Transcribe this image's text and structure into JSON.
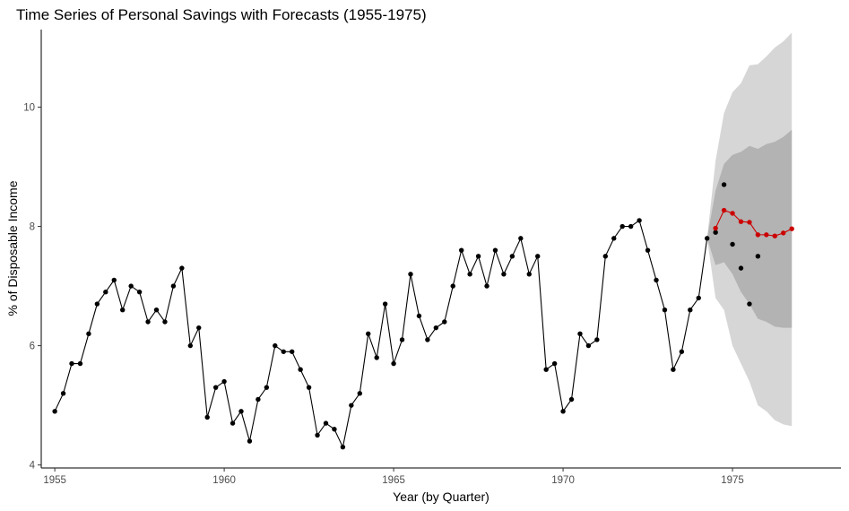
{
  "chart_data": {
    "type": "line",
    "title": "Time Series of Personal Savings with Forecasts (1955-1975)",
    "xlabel": "Year (by Quarter)",
    "ylabel": "% of Disposable Income",
    "xlim": [
      1954.6,
      1978.2
    ],
    "ylim": [
      3.95,
      11.3
    ],
    "x_ticks": [
      1955,
      1960,
      1965,
      1970,
      1975
    ],
    "y_ticks": [
      4,
      6,
      8,
      10
    ],
    "grid": false,
    "legend": "none",
    "colors": {
      "observed": "#000000",
      "forecast": "#cc0000",
      "band_80": "#b3b3b3",
      "band_95": "#d6d6d6"
    },
    "series": [
      {
        "role": "observed",
        "x": [
          1955.0,
          1955.25,
          1955.5,
          1955.75,
          1956.0,
          1956.25,
          1956.5,
          1956.75,
          1957.0,
          1957.25,
          1957.5,
          1957.75,
          1958.0,
          1958.25,
          1958.5,
          1958.75,
          1959.0,
          1959.25,
          1959.5,
          1959.75,
          1960.0,
          1960.25,
          1960.5,
          1960.75,
          1961.0,
          1961.25,
          1961.5,
          1961.75,
          1962.0,
          1962.25,
          1962.5,
          1962.75,
          1963.0,
          1963.25,
          1963.5,
          1963.75,
          1964.0,
          1964.25,
          1964.5,
          1964.75,
          1965.0,
          1965.25,
          1965.5,
          1965.75,
          1966.0,
          1966.25,
          1966.5,
          1966.75,
          1967.0,
          1967.25,
          1967.5,
          1967.75,
          1968.0,
          1968.25,
          1968.5,
          1968.75,
          1969.0,
          1969.25,
          1969.5,
          1969.75,
          1970.0,
          1970.25,
          1970.5,
          1970.75,
          1971.0,
          1971.25,
          1971.5,
          1971.75,
          1972.0,
          1972.25,
          1972.5,
          1972.75,
          1973.0,
          1973.25,
          1973.5,
          1973.75,
          1974.0,
          1974.25
        ],
        "values": [
          4.9,
          5.2,
          5.7,
          5.7,
          6.2,
          6.7,
          6.9,
          7.1,
          6.6,
          7.0,
          6.9,
          6.4,
          6.6,
          6.4,
          7.0,
          7.3,
          6.0,
          6.3,
          4.8,
          5.3,
          5.4,
          4.7,
          4.9,
          4.4,
          5.1,
          5.3,
          6.0,
          5.9,
          5.9,
          5.6,
          5.3,
          4.5,
          4.7,
          4.6,
          4.3,
          5.0,
          5.2,
          6.2,
          5.8,
          6.7,
          5.7,
          6.1,
          7.2,
          6.5,
          6.1,
          6.3,
          6.4,
          7.0,
          7.6,
          7.2,
          7.5,
          7.0,
          7.6,
          7.2,
          7.5,
          7.8,
          7.2,
          7.5,
          5.6,
          5.7,
          4.9,
          5.1,
          6.2,
          6.0,
          6.1,
          7.5,
          7.8,
          8.0,
          8.0,
          8.1,
          7.6,
          7.1,
          6.6,
          5.6,
          5.9,
          6.6,
          6.8,
          7.8
        ]
      },
      {
        "role": "holdout_actual",
        "x": [
          1974.5,
          1974.75,
          1975.0,
          1975.25,
          1975.5,
          1975.75
        ],
        "values": [
          7.9,
          8.7,
          7.7,
          7.3,
          6.7,
          7.5
        ]
      },
      {
        "role": "forecast",
        "x": [
          1974.5,
          1974.75,
          1975.0,
          1975.25,
          1975.5,
          1975.75,
          1976.0,
          1976.25,
          1976.5,
          1976.75
        ],
        "values": [
          7.97,
          8.27,
          8.22,
          8.08,
          8.07,
          7.86,
          7.86,
          7.84,
          7.89,
          7.96
        ]
      }
    ],
    "intervals": [
      {
        "level": 95,
        "x": [
          1974.25,
          1974.5,
          1974.75,
          1975.0,
          1975.25,
          1975.5,
          1975.75,
          1976.0,
          1976.25,
          1976.5,
          1976.75
        ],
        "lower": [
          7.8,
          6.8,
          6.6,
          6.0,
          5.7,
          5.4,
          5.0,
          4.9,
          4.75,
          4.68,
          4.65
        ],
        "upper": [
          7.8,
          9.1,
          9.9,
          10.25,
          10.4,
          10.7,
          10.72,
          10.85,
          11.0,
          11.1,
          11.25
        ]
      },
      {
        "level": 80,
        "x": [
          1974.25,
          1974.5,
          1974.75,
          1975.0,
          1975.25,
          1975.5,
          1975.75,
          1976.0,
          1976.25,
          1976.5,
          1976.75
        ],
        "lower": [
          7.8,
          7.35,
          7.4,
          7.2,
          6.9,
          6.7,
          6.45,
          6.4,
          6.32,
          6.3,
          6.3
        ],
        "upper": [
          7.8,
          8.6,
          9.05,
          9.2,
          9.25,
          9.35,
          9.3,
          9.38,
          9.42,
          9.5,
          9.62
        ]
      }
    ]
  }
}
